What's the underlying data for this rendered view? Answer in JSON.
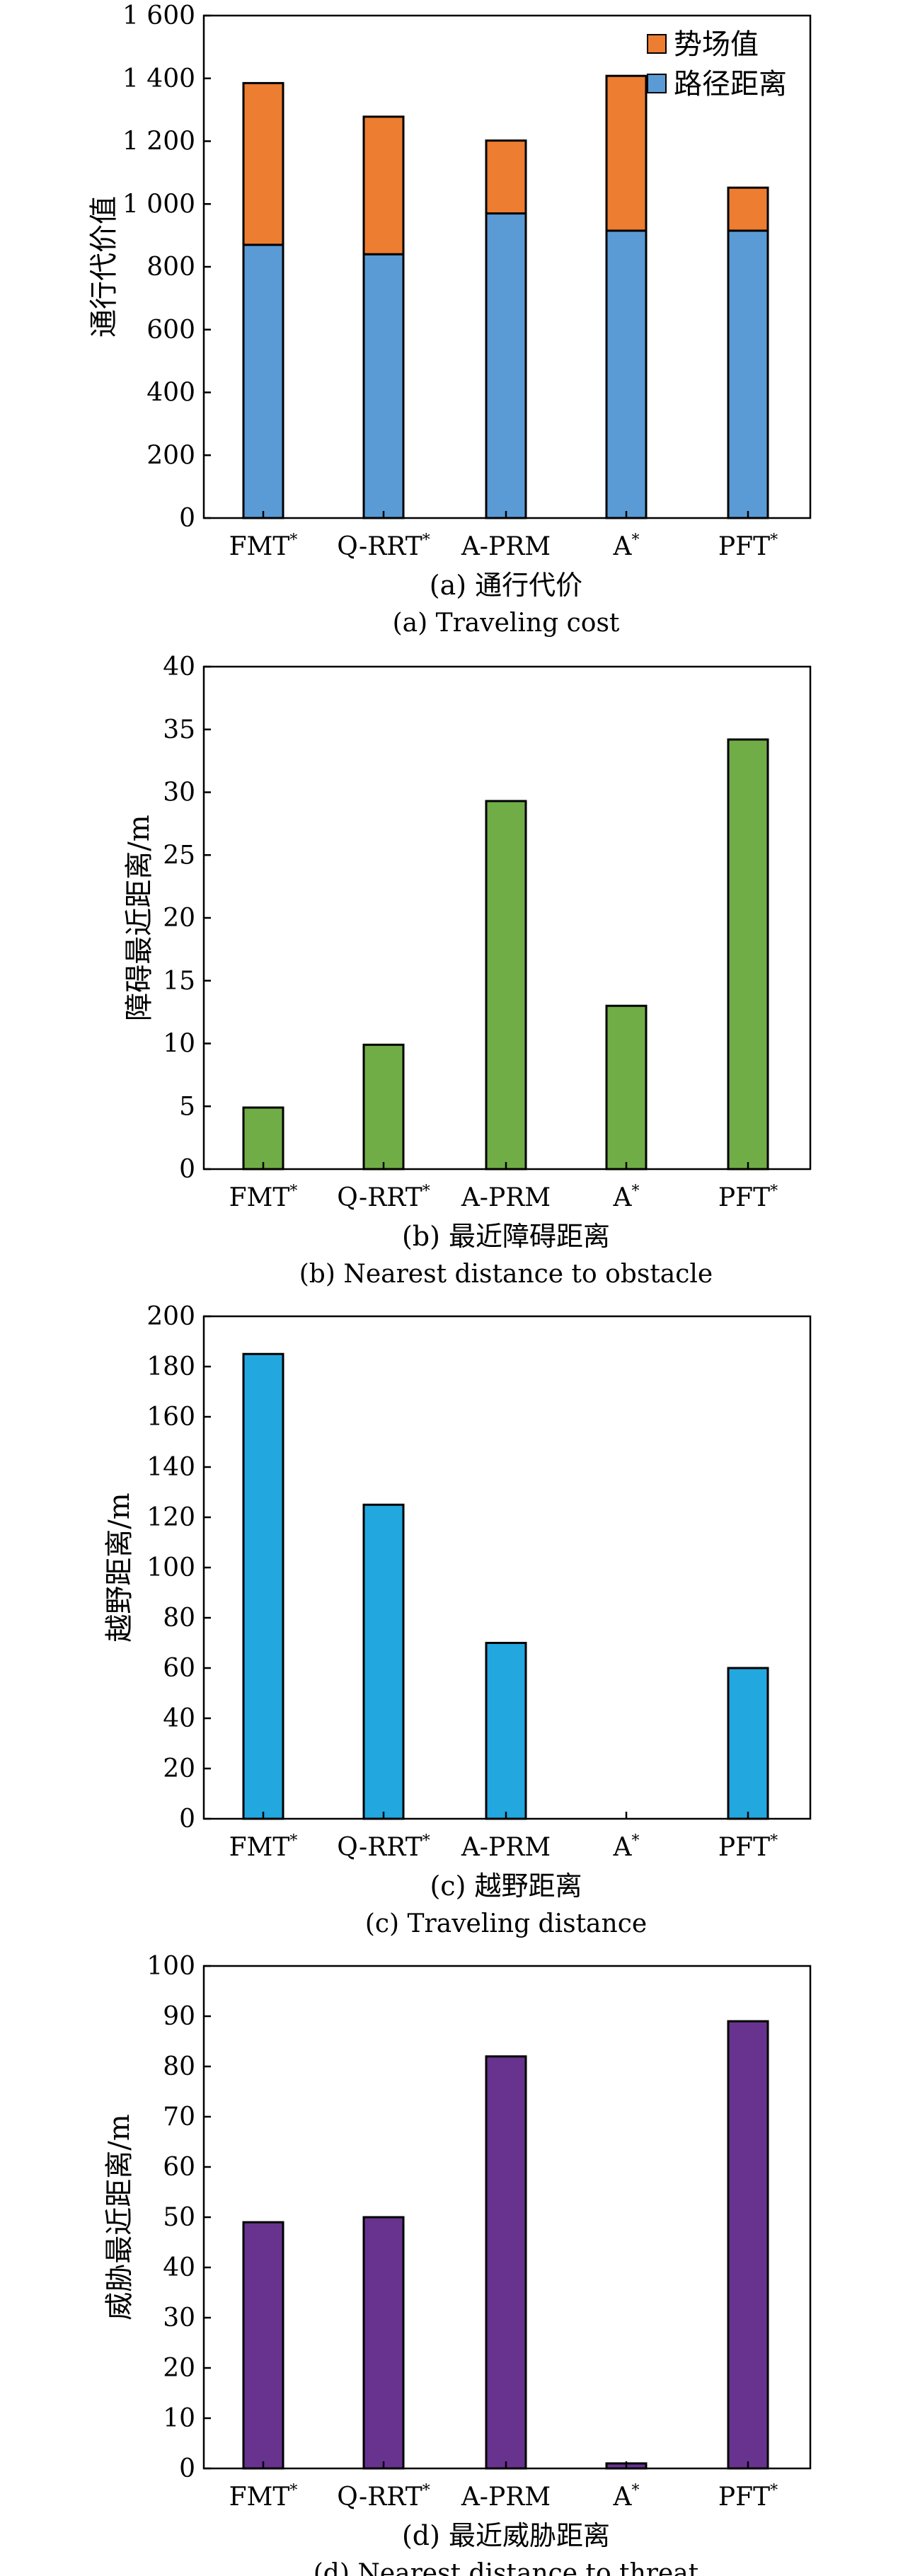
{
  "chart_data": [
    {
      "id": "a",
      "type": "bar",
      "stacked": true,
      "categories": [
        "FMT*",
        "Q-RRT*",
        "A-PRM",
        "A*",
        "PFT*"
      ],
      "series": [
        {
          "name": "路径距离",
          "values": [
            870,
            840,
            970,
            915,
            915
          ],
          "color": "#5b9bd5"
        },
        {
          "name": "势场值",
          "values": [
            515,
            438,
            232,
            493,
            137
          ],
          "color": "#ed7d31"
        }
      ],
      "ylabel": "通行代价值",
      "ylim": [
        0,
        1600
      ],
      "yticks": [
        0,
        200,
        400,
        600,
        800,
        1000,
        1200,
        1400,
        1600
      ],
      "ytick_labels": [
        "0",
        "200",
        "400",
        "600",
        "800",
        "1 000",
        "1 200",
        "1 400",
        "1 600"
      ],
      "caption_cn": "(a) 通行代价",
      "caption_en": "(a) Traveling cost",
      "legend_position": "top-right",
      "grid": false
    },
    {
      "id": "b",
      "type": "bar",
      "categories": [
        "FMT*",
        "Q-RRT*",
        "A-PRM",
        "A*",
        "PFT*"
      ],
      "values": [
        4.9,
        9.9,
        29.3,
        13.0,
        34.2
      ],
      "color": "#70ad47",
      "ylabel": "障碍最近距离/m",
      "ylim": [
        0,
        40
      ],
      "yticks": [
        0,
        5,
        10,
        15,
        20,
        25,
        30,
        35,
        40
      ],
      "ytick_labels": [
        "0",
        "5",
        "10",
        "15",
        "20",
        "25",
        "30",
        "35",
        "40"
      ],
      "caption_cn": "(b) 最近障碍距离",
      "caption_en": "(b) Nearest distance to obstacle",
      "grid": false
    },
    {
      "id": "c",
      "type": "bar",
      "categories": [
        "FMT*",
        "Q-RRT*",
        "A-PRM",
        "A*",
        "PFT*"
      ],
      "values": [
        185,
        125,
        70,
        0,
        60
      ],
      "color": "#22a7df",
      "ylabel": "越野距离/m",
      "ylim": [
        0,
        200
      ],
      "yticks": [
        0,
        20,
        40,
        60,
        80,
        100,
        120,
        140,
        160,
        180,
        200
      ],
      "ytick_labels": [
        "0",
        "20",
        "40",
        "60",
        "80",
        "100",
        "120",
        "140",
        "160",
        "180",
        "200"
      ],
      "caption_cn": "(c) 越野距离",
      "caption_en": "(c) Traveling distance",
      "grid": false
    },
    {
      "id": "d",
      "type": "bar",
      "categories": [
        "FMT*",
        "Q-RRT*",
        "A-PRM",
        "A*",
        "PFT*"
      ],
      "values": [
        49,
        50,
        82,
        1,
        89
      ],
      "color": "#68338f",
      "ylabel": "威胁最近距离/m",
      "ylim": [
        0,
        100
      ],
      "yticks": [
        0,
        10,
        20,
        30,
        40,
        50,
        60,
        70,
        80,
        90,
        100
      ],
      "ytick_labels": [
        "0",
        "10",
        "20",
        "30",
        "40",
        "50",
        "60",
        "70",
        "80",
        "90",
        "100"
      ],
      "caption_cn": "(d) 最近威胁距离",
      "caption_en": "(d) Nearest distance to threat",
      "grid": false
    }
  ]
}
